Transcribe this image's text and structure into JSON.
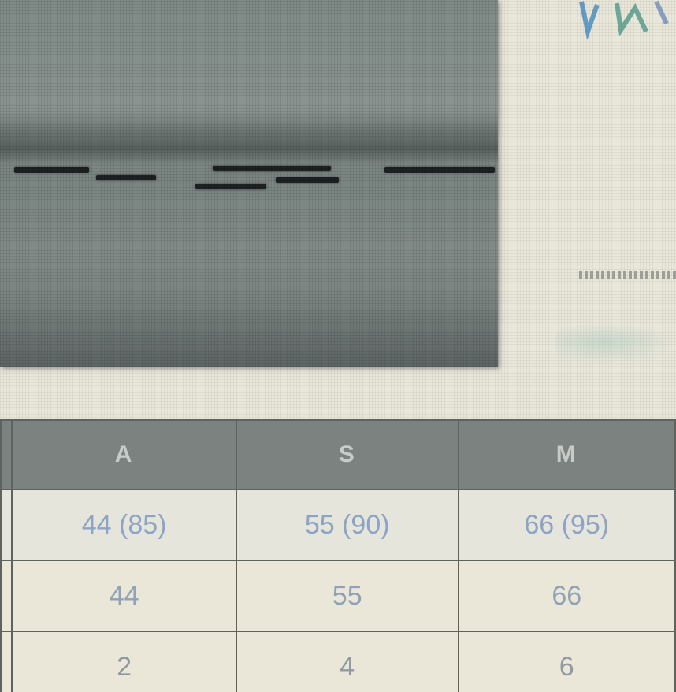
{
  "product_image": {
    "icon": "product-photo"
  },
  "side_marks": {
    "top_right": "UNK",
    "colors": [
      "#2e7bb8",
      "#3fae8c"
    ]
  },
  "results_table": {
    "headers": [
      "",
      "A",
      "S",
      "M"
    ],
    "rows": [
      [
        "",
        "44 (85)",
        "55 (90)",
        "66 (95)"
      ],
      [
        "",
        "44",
        "55",
        "66"
      ],
      [
        "",
        "2",
        "4",
        "6"
      ]
    ]
  }
}
